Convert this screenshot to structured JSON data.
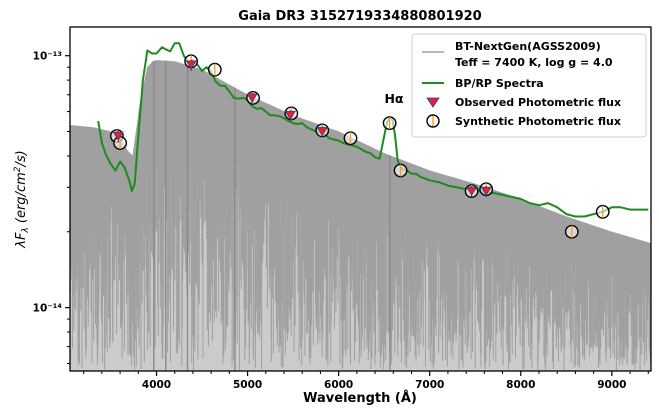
{
  "chart_data": {
    "type": "line",
    "title": "Gaia DR3 3152719334880801920",
    "xlabel": "Wavelength (Å)",
    "ylabel": "λF_λ (erg/cm²/s)",
    "xlim": [
      3050,
      9430
    ],
    "ylim": [
      5.6e-15,
      1.3e-13
    ],
    "yscale": "log",
    "grid": false,
    "legend_position": "top-right",
    "x_ticks": [
      "4000",
      "5000",
      "6000",
      "7000",
      "8000",
      "9000"
    ],
    "y_ticks": [
      "10⁻¹³",
      "10⁻¹⁴"
    ],
    "annotation": {
      "text": "Hα",
      "x": 6560,
      "y": 6.8e-14
    },
    "series": [
      {
        "name": "BT-NextGen(AGSS2009)",
        "name_line2": "Teff = 7400 K, log g = 4.0",
        "color": "#a0a0a0",
        "x": [
          3050,
          3300,
          3500,
          3620,
          3680,
          3740,
          3820,
          3900,
          3960,
          4000,
          4200,
          4500,
          5000,
          5500,
          6000,
          6500,
          7000,
          7500,
          8000,
          8500,
          9000,
          9430
        ],
        "y": [
          5.3e-14,
          5.2e-14,
          5e-14,
          4.6e-14,
          4.2e-14,
          4e-14,
          6.5e-14,
          9e-14,
          9.5e-14,
          9.6e-14,
          9.5e-14,
          8.8e-14,
          7e-14,
          5.8e-14,
          5e-14,
          4.1e-14,
          3.5e-14,
          3.1e-14,
          2.7e-14,
          2.3e-14,
          2e-14,
          1.8e-14
        ]
      },
      {
        "name": "BP/RP Spectra",
        "color": "#1f8a1f",
        "x": [
          3360,
          3400,
          3450,
          3500,
          3550,
          3600,
          3650,
          3700,
          3730,
          3760,
          3800,
          3850,
          3900,
          3950,
          4000,
          4060,
          4100,
          4150,
          4200,
          4250,
          4300,
          4350,
          4400,
          4450,
          4500,
          4550,
          4600,
          4650,
          4700,
          4750,
          4800,
          4850,
          4900,
          4950,
          5000,
          5050,
          5100,
          5150,
          5200,
          5250,
          5300,
          5350,
          5400,
          5450,
          5500,
          5550,
          5600,
          5650,
          5700,
          5750,
          5800,
          5850,
          5900,
          5950,
          6000,
          6050,
          6100,
          6150,
          6200,
          6250,
          6300,
          6350,
          6400,
          6450,
          6500,
          6530,
          6560,
          6590,
          6620,
          6650,
          6700,
          6750,
          6800,
          6850,
          6900,
          6950,
          7000,
          7100,
          7200,
          7300,
          7400,
          7500,
          7600,
          7700,
          7800,
          7900,
          8000,
          8100,
          8200,
          8300,
          8400,
          8500,
          8600,
          8700,
          8800,
          8900,
          9000,
          9100,
          9200,
          9300,
          9400
        ],
        "y": [
          5.5e-14,
          4.5e-14,
          4e-14,
          3.7e-14,
          3.5e-14,
          3.8e-14,
          3.6e-14,
          3.2e-14,
          2.9e-14,
          3.1e-14,
          4.8e-14,
          8e-14,
          1.05e-13,
          1.02e-13,
          1.02e-13,
          1.08e-13,
          1.06e-13,
          1.04e-13,
          1.12e-13,
          1.12e-13,
          1e-13,
          9.4e-14,
          9.6e-14,
          9.2e-14,
          8.7e-14,
          9e-14,
          8.6e-14,
          7.9e-14,
          7.6e-14,
          7.6e-14,
          7.2e-14,
          6.8e-14,
          6.75e-14,
          6.8e-14,
          6.7e-14,
          6.3e-14,
          6.15e-14,
          6.2e-14,
          6e-14,
          5.8e-14,
          5.8e-14,
          5.75e-14,
          5.65e-14,
          5.5e-14,
          5.4e-14,
          5.35e-14,
          5.4e-14,
          5.2e-14,
          5.1e-14,
          5e-14,
          4.95e-14,
          4.85e-14,
          4.7e-14,
          4.65e-14,
          4.6e-14,
          4.5e-14,
          4.45e-14,
          4.4e-14,
          4.35e-14,
          4.25e-14,
          4.15e-14,
          4.1e-14,
          3.95e-14,
          3.9e-14,
          4.8e-14,
          5.4e-14,
          5.7e-14,
          5.6e-14,
          4.8e-14,
          3.8e-14,
          3.55e-14,
          3.5e-14,
          3.4e-14,
          3.4e-14,
          3.3e-14,
          3.25e-14,
          3.2e-14,
          3.15e-14,
          3.05e-14,
          3e-14,
          2.95e-14,
          2.95e-14,
          2.85e-14,
          2.85e-14,
          2.8e-14,
          2.75e-14,
          2.7e-14,
          2.6e-14,
          2.55e-14,
          2.6e-14,
          2.5e-14,
          2.35e-14,
          2.3e-14,
          2.3e-14,
          2.35e-14,
          2.4e-14,
          2.5e-14,
          2.5e-14,
          2.45e-14,
          2.45e-14,
          2.45e-14
        ]
      },
      {
        "name": "Observed Photometric flux",
        "color": "#e8202a",
        "marker": "triangle-down",
        "x": [
          3580,
          4380,
          5050,
          5470,
          5820,
          7460,
          7620
        ],
        "y": [
          4.8e-14,
          9.2e-14,
          6.8e-14,
          5.8e-14,
          5e-14,
          2.9e-14,
          2.9e-14
        ]
      },
      {
        "name": "Synthetic Photometric flux",
        "color": "#ff9a2e",
        "marker": "circle",
        "x": [
          3565,
          3600,
          4380,
          4640,
          5060,
          5480,
          5820,
          6130,
          6560,
          6680,
          7460,
          7620,
          8560,
          8900
        ],
        "y": [
          4.8e-14,
          4.5e-14,
          9.5e-14,
          8.8e-14,
          6.8e-14,
          5.9e-14,
          5.05e-14,
          4.7e-14,
          5.4e-14,
          3.5e-14,
          2.9e-14,
          2.95e-14,
          2e-14,
          2.4e-14
        ]
      }
    ]
  }
}
